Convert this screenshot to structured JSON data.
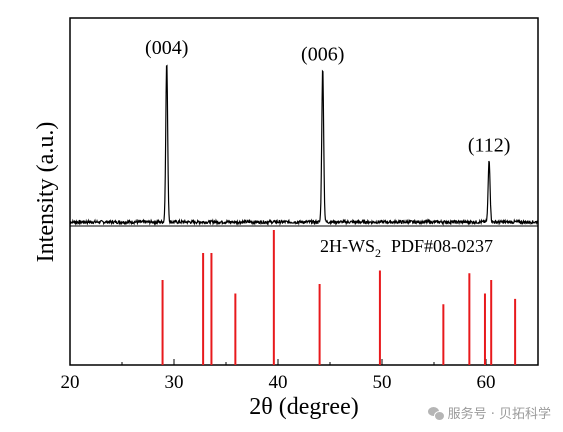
{
  "chart_data": {
    "type": "line",
    "xlabel": "2θ (degree)",
    "ylabel": "Intensity (a.u.)",
    "xlim": [
      20,
      65
    ],
    "x_ticks": [
      20,
      30,
      40,
      50,
      60
    ],
    "measured": {
      "baseline": 0.02,
      "peaks": [
        {
          "x": 29.3,
          "height": 1.0,
          "label": "(004)"
        },
        {
          "x": 44.3,
          "height": 0.96,
          "label": "(006)"
        },
        {
          "x": 60.3,
          "height": 0.39,
          "label": "(112)"
        }
      ]
    },
    "reference": {
      "label_main": "2H-WS",
      "label_sub": "2",
      "label_pdf": "PDF#08-0237",
      "lines": [
        {
          "x": 28.9,
          "intensity": 0.63
        },
        {
          "x": 32.8,
          "intensity": 0.83
        },
        {
          "x": 33.6,
          "intensity": 0.83
        },
        {
          "x": 35.9,
          "intensity": 0.53
        },
        {
          "x": 39.6,
          "intensity": 1.0
        },
        {
          "x": 44.0,
          "intensity": 0.6
        },
        {
          "x": 49.8,
          "intensity": 0.7
        },
        {
          "x": 55.9,
          "intensity": 0.45
        },
        {
          "x": 58.4,
          "intensity": 0.68
        },
        {
          "x": 59.9,
          "intensity": 0.53
        },
        {
          "x": 60.5,
          "intensity": 0.63
        },
        {
          "x": 62.8,
          "intensity": 0.49
        }
      ],
      "color": "#e8191c"
    }
  },
  "watermark": {
    "text": "服务号 · 贝拓科学"
  }
}
